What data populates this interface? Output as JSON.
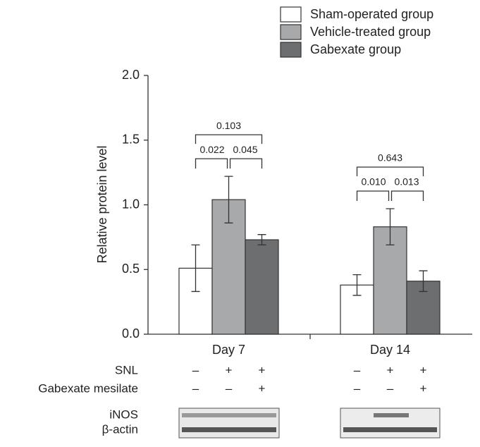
{
  "chart_data": {
    "type": "bar",
    "y_label": "Relative protein level",
    "categories": [
      "Day 7",
      "Day 14"
    ],
    "series": [
      {
        "name": "Sham-operated group",
        "color": "#ffffff",
        "values": [
          0.51,
          0.38
        ],
        "errors": [
          0.18,
          0.08
        ]
      },
      {
        "name": "Vehicle-treated group",
        "color": "#a8a9ab",
        "values": [
          1.04,
          0.83
        ],
        "errors": [
          0.18,
          0.14
        ]
      },
      {
        "name": "Gabexate group",
        "color": "#6d6e70",
        "values": [
          0.73,
          0.41
        ],
        "errors": [
          0.04,
          0.08
        ]
      }
    ],
    "ylim": [
      0,
      2.0
    ],
    "yticks": [
      {
        "value": 0,
        "label": "0.0"
      },
      0.5,
      {
        "value": 1,
        "label": "1.0"
      },
      1.5,
      {
        "value": 2,
        "label": "2.0"
      }
    ],
    "annotations": [
      {
        "text": "0.022",
        "category": 0,
        "from": 0,
        "to": 1
      },
      {
        "text": "0.045",
        "category": 0,
        "from": 1,
        "to": 2
      },
      {
        "text": "0.103",
        "category": 0,
        "from": 0,
        "to": 2
      },
      {
        "text": "0.010",
        "category": 1,
        "from": 0,
        "to": 1
      },
      {
        "text": "0.013",
        "category": 1,
        "from": 1,
        "to": 2
      },
      {
        "text": "0.643",
        "category": 1,
        "from": 0,
        "to": 2
      }
    ],
    "treatments": [
      {
        "label": "SNL",
        "signs": [
          "–",
          "+",
          "+",
          "–",
          "+",
          "+"
        ]
      },
      {
        "label": "Gabexate mesilate",
        "signs": [
          "–",
          "–",
          "+",
          "–",
          "–",
          "+"
        ]
      }
    ],
    "blots": [
      "iNOS",
      "β-actin"
    ]
  }
}
